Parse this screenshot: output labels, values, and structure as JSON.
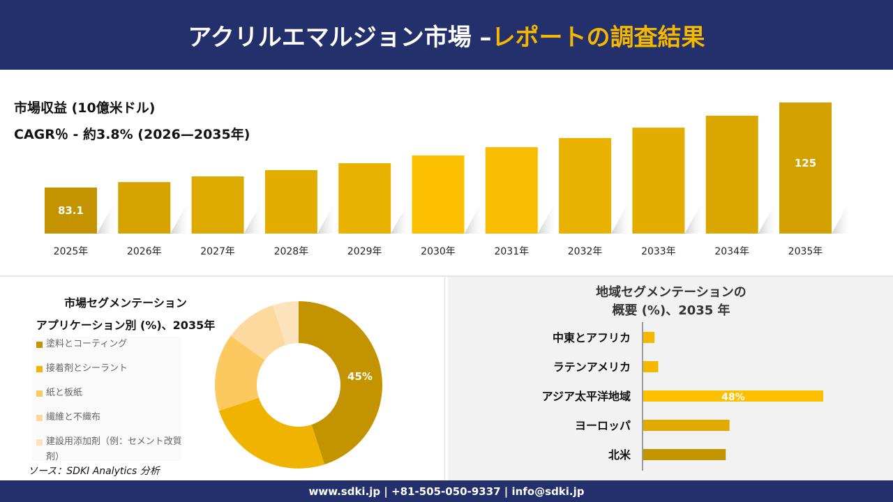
{
  "header": {
    "title_main": "アクリルエマルジョン市場 –",
    "title_highlight": "レポートの調査結果"
  },
  "colors": {
    "header_bg": "#24306b",
    "accent": "#f5b800"
  },
  "chart_data": [
    {
      "type": "bar",
      "title": "市場収益 (10億米ドル)",
      "subtitle": "CAGR％ - 約3.8% (2026—2035年)",
      "categories": [
        "2025年",
        "2026年",
        "2027年",
        "2028年",
        "2029年",
        "2030年",
        "2031年",
        "2032年",
        "2033年",
        "2034年",
        "2035年"
      ],
      "values": [
        83.1,
        85.8,
        88.6,
        91.7,
        95.1,
        98.9,
        103.0,
        107.5,
        112.6,
        118.5,
        125
      ],
      "data_labels": {
        "0": "83.1",
        "10": "125"
      },
      "colors": [
        "#c49400",
        "#d6a400",
        "#dcaa00",
        "#e2ad00",
        "#eab200",
        "#fcc000",
        "#f8bd00",
        "#eab200",
        "#e2ad00",
        "#d9a700",
        "#d2a100"
      ]
    },
    {
      "type": "pie",
      "donut": true,
      "title_line1": "市場セグメンテーション",
      "title_line2": "アプリケーション別 (%)、2035年",
      "labels": [
        "塗料とコーティング",
        "接着剤とシーラント",
        "紙と板紙",
        "繊維と不織布",
        "建設用添加剤（例：セメント改質剤）"
      ],
      "values": [
        45,
        25,
        15,
        10,
        5
      ],
      "data_label": "45%",
      "colors": [
        "#c49400",
        "#f0b400",
        "#fcc860",
        "#fdd9a0",
        "#fde3bc"
      ]
    },
    {
      "type": "bar",
      "orientation": "horizontal",
      "title_line1": "地域セグメンテーションの",
      "title_line2": "概要 (%)、2035 年",
      "categories": [
        "中東とアフリカ",
        "ラテンアメリカ",
        "アジア太平洋地域",
        "ヨーロッパ",
        "北米"
      ],
      "values": [
        3,
        4,
        48,
        23,
        22
      ],
      "data_label": "48%",
      "colors": [
        "#f5b800",
        "#f5b800",
        "#fcc000",
        "#e0aa00",
        "#c49400"
      ]
    }
  ],
  "source": "ソース：SDKI Analytics 分析",
  "footer": "www.sdki.jp | +81-505-050-9337 | info@sdki.jp"
}
